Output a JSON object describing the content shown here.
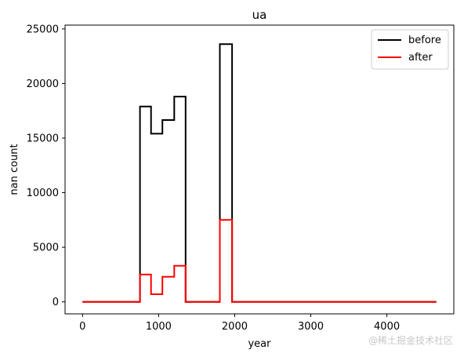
{
  "chart_data": {
    "type": "line",
    "title": "ua",
    "xlabel": "year",
    "ylabel": "nan count",
    "xlim": [
      -230,
      4880
    ],
    "ylim": [
      -1100,
      25350
    ],
    "xticks": [
      0,
      1000,
      2000,
      3000,
      4000
    ],
    "yticks": [
      0,
      5000,
      10000,
      15000,
      20000,
      25000
    ],
    "grid": false,
    "legend_position": "top-right",
    "series": [
      {
        "name": "before",
        "color": "#000000",
        "points": [
          [
            0,
            0
          ],
          [
            755,
            0
          ],
          [
            755,
            17900
          ],
          [
            900,
            17900
          ],
          [
            900,
            15400
          ],
          [
            1050,
            15400
          ],
          [
            1050,
            16650
          ],
          [
            1205,
            16650
          ],
          [
            1205,
            18800
          ],
          [
            1355,
            18800
          ],
          [
            1355,
            0
          ],
          [
            1805,
            0
          ],
          [
            1805,
            23600
          ],
          [
            1965,
            23600
          ],
          [
            1965,
            0
          ],
          [
            4650,
            0
          ]
        ]
      },
      {
        "name": "after",
        "color": "#ff0000",
        "points": [
          [
            0,
            0
          ],
          [
            755,
            0
          ],
          [
            755,
            2500
          ],
          [
            900,
            2500
          ],
          [
            900,
            700
          ],
          [
            1050,
            700
          ],
          [
            1050,
            2300
          ],
          [
            1205,
            2300
          ],
          [
            1205,
            3300
          ],
          [
            1355,
            3300
          ],
          [
            1355,
            0
          ],
          [
            1805,
            0
          ],
          [
            1805,
            7500
          ],
          [
            1965,
            7500
          ],
          [
            1965,
            0
          ],
          [
            4650,
            0
          ]
        ]
      }
    ]
  },
  "watermark": "@稀土掘金技术社区"
}
